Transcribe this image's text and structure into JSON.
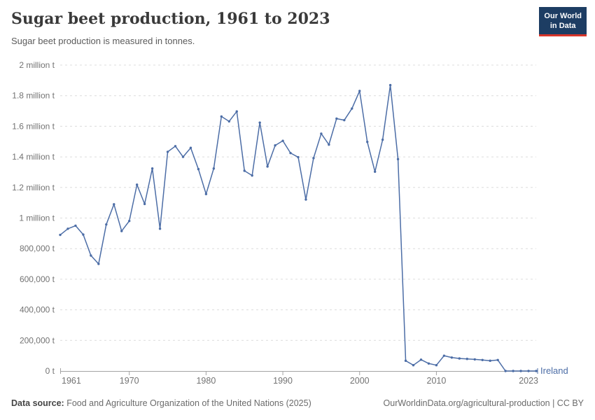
{
  "header": {
    "title": "Sugar beet production, 1961 to 2023",
    "subtitle": "Sugar beet production is measured in tonnes.",
    "logo": {
      "line1": "Our World",
      "line2": "in Data"
    }
  },
  "chart_data": {
    "type": "line",
    "title": "Sugar beet production, 1961 to 2023",
    "subtitle": "Sugar beet production is measured in tonnes.",
    "unit": "tonnes",
    "grid": "dashed",
    "legend_position": "end-of-line",
    "xlim": [
      1961,
      2023
    ],
    "ylim": [
      0,
      2000000
    ],
    "x": [
      1961,
      1962,
      1963,
      1964,
      1965,
      1966,
      1967,
      1968,
      1969,
      1970,
      1971,
      1972,
      1973,
      1974,
      1975,
      1976,
      1977,
      1978,
      1979,
      1980,
      1981,
      1982,
      1983,
      1984,
      1985,
      1986,
      1987,
      1988,
      1989,
      1990,
      1991,
      1992,
      1993,
      1994,
      1995,
      1996,
      1997,
      1998,
      1999,
      2000,
      2001,
      2002,
      2003,
      2004,
      2005,
      2006,
      2007,
      2008,
      2009,
      2010,
      2011,
      2012,
      2013,
      2014,
      2015,
      2016,
      2017,
      2018,
      2019,
      2020,
      2021,
      2022,
      2023
    ],
    "series": [
      {
        "name": "Ireland",
        "color": "#4c6da6",
        "values": [
          890000,
          930000,
          950000,
          892000,
          755000,
          700000,
          958000,
          1090000,
          915000,
          981000,
          1218000,
          1092000,
          1324000,
          930000,
          1433000,
          1470000,
          1400000,
          1459000,
          1320000,
          1157000,
          1324000,
          1664000,
          1632000,
          1697000,
          1309000,
          1278000,
          1624000,
          1337000,
          1475000,
          1505000,
          1425000,
          1398000,
          1121000,
          1392000,
          1552000,
          1480000,
          1650000,
          1640000,
          1716000,
          1831000,
          1498000,
          1303000,
          1512000,
          1869000,
          1385000,
          67000,
          38000,
          74000,
          49000,
          38000,
          100000,
          88000,
          82000,
          79000,
          76000,
          72000,
          67000,
          72000,
          0,
          0,
          0,
          0,
          0
        ]
      }
    ],
    "y_ticks": [
      {
        "value": 0,
        "label": "0 t"
      },
      {
        "value": 200000,
        "label": "200,000 t"
      },
      {
        "value": 400000,
        "label": "400,000 t"
      },
      {
        "value": 600000,
        "label": "600,000 t"
      },
      {
        "value": 800000,
        "label": "800,000 t"
      },
      {
        "value": 1000000,
        "label": "1 million t"
      },
      {
        "value": 1200000,
        "label": "1.2 million t"
      },
      {
        "value": 1400000,
        "label": "1.4 million t"
      },
      {
        "value": 1600000,
        "label": "1.6 million t"
      },
      {
        "value": 1800000,
        "label": "1.8 million t"
      },
      {
        "value": 2000000,
        "label": "2 million t"
      }
    ],
    "x_ticks": [
      {
        "value": 1961,
        "label": "1961"
      },
      {
        "value": 1970,
        "label": "1970"
      },
      {
        "value": 1980,
        "label": "1980"
      },
      {
        "value": 1990,
        "label": "1990"
      },
      {
        "value": 2000,
        "label": "2000"
      },
      {
        "value": 2010,
        "label": "2010"
      },
      {
        "value": 2023,
        "label": "2023"
      }
    ]
  },
  "footer": {
    "source_label": "Data source:",
    "source_value": "Food and Agriculture Organization of the United Nations (2025)",
    "link": "OurWorldinData.org/agricultural-production | CC BY"
  },
  "colors": {
    "accent": "#4c6da6",
    "grid": "#dcdcdc",
    "axis": "#a3a3a3",
    "tick_text": "#737373",
    "logo_bg": "#1d3d63",
    "logo_bar": "#d8352a"
  }
}
